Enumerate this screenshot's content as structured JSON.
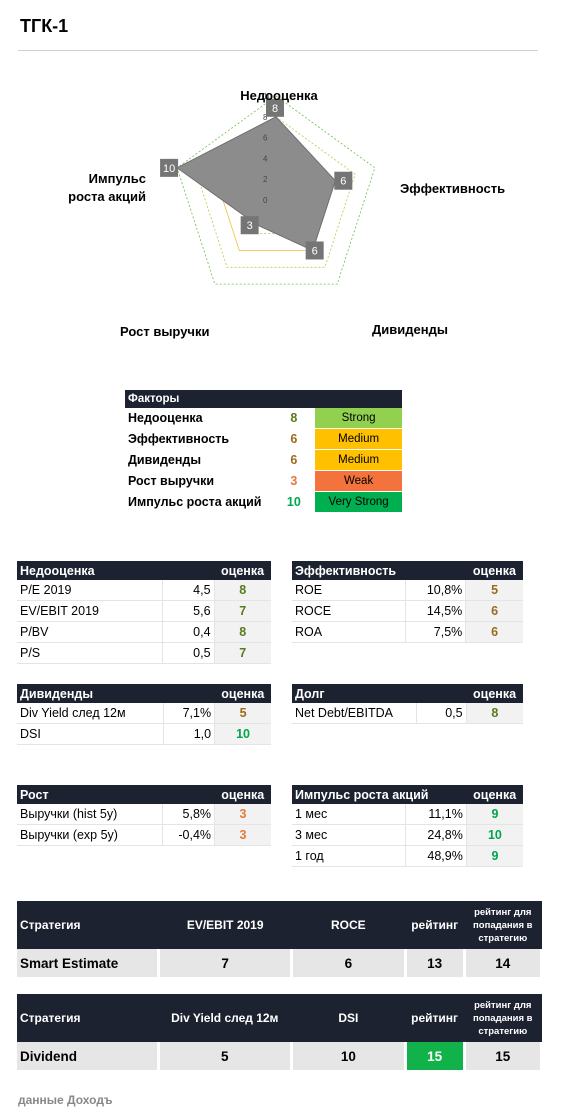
{
  "title": "ТГК-1",
  "radar": {
    "axes": [
      "Недооценка",
      "Эффективность",
      "Дивиденды",
      "Рост выручки"
    ],
    "axis5_line1": "Импульс",
    "axis5_line2": "роста акций",
    "values": [
      8,
      6,
      6,
      3,
      10
    ],
    "ticks": [
      "0",
      "2",
      "4",
      "6",
      "8",
      "10"
    ],
    "max": 10,
    "colors": {
      "fill": "#8c8c8c",
      "stroke": "#6e6e6e",
      "box": "#757575"
    }
  },
  "factors": {
    "header": "Факторы",
    "rows": [
      {
        "name": "Недооценка",
        "score": "8",
        "level": "Strong",
        "color": "#92d050",
        "text": "#000000"
      },
      {
        "name": "Эффективность",
        "score": "6",
        "level": "Medium",
        "color": "#ffc000",
        "text": "#000000"
      },
      {
        "name": "Дивиденды",
        "score": "6",
        "level": "Medium",
        "color": "#ffc000",
        "text": "#000000"
      },
      {
        "name": "Рост выручки",
        "score": "3",
        "level": "Weak",
        "color": "#f4733c",
        "text": "#000000"
      },
      {
        "name": "Импульс роста акций",
        "score": "10",
        "level": "Very Strong",
        "color": "#00b050",
        "text": "#000000"
      }
    ]
  },
  "score_header": "оценка",
  "undervalue": {
    "title": "Недооценка",
    "rows": [
      {
        "name": "P/E 2019",
        "value": "4,5",
        "score": "8"
      },
      {
        "name": "EV/EBIT 2019",
        "value": "5,6",
        "score": "7"
      },
      {
        "name": "P/BV",
        "value": "0,4",
        "score": "8"
      },
      {
        "name": "P/S",
        "value": "0,5",
        "score": "7"
      }
    ]
  },
  "efficiency": {
    "title": "Эффективность",
    "rows": [
      {
        "name": "ROE",
        "value": "10,8%",
        "score": "5"
      },
      {
        "name": "ROCE",
        "value": "14,5%",
        "score": "6"
      },
      {
        "name": "ROA",
        "value": "7,5%",
        "score": "6"
      }
    ]
  },
  "dividends": {
    "title": "Дивиденды",
    "rows": [
      {
        "name": "Div Yield след 12м",
        "value": "7,1%",
        "score": "5"
      },
      {
        "name": "DSI",
        "value": "1,0",
        "score": "10"
      }
    ]
  },
  "debt": {
    "title": "Долг",
    "rows": [
      {
        "name": "Net Debt/EBITDA",
        "value": "0,5",
        "score": "8"
      }
    ]
  },
  "growth": {
    "title": "Рост",
    "rows": [
      {
        "name": "Выручки (hist 5y)",
        "value": "5,8%",
        "score": "3"
      },
      {
        "name": "Выручки (exp 5y)",
        "value": "-0,4%",
        "score": "3"
      }
    ]
  },
  "momentum": {
    "title": "Импульс роста акций",
    "rows": [
      {
        "name": "1 мес",
        "value": "11,1%",
        "score": "9"
      },
      {
        "name": "3 мес",
        "value": "24,8%",
        "score": "10"
      },
      {
        "name": "1 год",
        "value": "48,9%",
        "score": "9"
      }
    ]
  },
  "strategy1": {
    "h_strategy": "Стратегия",
    "h_m1": "EV/EBIT 2019",
    "h_m2": "ROCE",
    "h_rating": "рейтинг",
    "h_rank": "рейтинг для попадания в стратегию",
    "name": "Smart Estimate",
    "v1": "7",
    "v2": "6",
    "rating": "13",
    "rank": "14"
  },
  "strategy2": {
    "h_strategy": "Стратегия",
    "h_m1": "Div Yield след 12м",
    "h_m2": "DSI",
    "h_rating": "рейтинг",
    "h_rank": "рейтинг для попадания в стратегию",
    "name": "Dividend",
    "v1": "5",
    "v2": "10",
    "rating": "15",
    "rank": "15"
  },
  "footer": "данные Доходъ"
}
